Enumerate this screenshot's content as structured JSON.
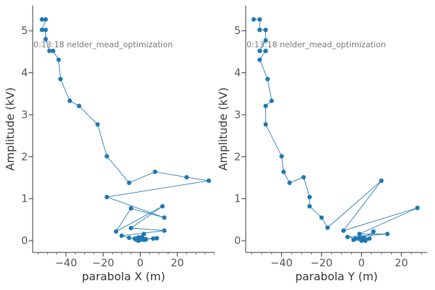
{
  "colors": {
    "series": "#1f77b4"
  },
  "chart_data": [
    {
      "type": "line",
      "annotation": "0:13:18 nelder_mead_optimization",
      "xlabel": "parabola X (m)",
      "ylabel": "Amplitude (kV)",
      "xlim": [
        -58,
        40
      ],
      "ylim": [
        -0.28,
        5.6
      ],
      "xticks": [
        -40,
        -20,
        0,
        20
      ],
      "xticklabels": [
        "−40",
        "−20",
        "0",
        "20"
      ],
      "yticks": [
        0,
        1,
        2,
        3,
        4,
        5
      ],
      "yticklabels": [
        "0",
        "1",
        "2",
        "3",
        "4",
        "5"
      ],
      "grid": false,
      "markers": true,
      "x": [
        -53,
        -51,
        -53,
        -51,
        -51,
        -49,
        -47,
        -44,
        -43,
        -38,
        -33,
        -23,
        -18,
        -6,
        8,
        25,
        37,
        -18,
        13,
        -5,
        -13,
        12,
        -5,
        13,
        -10,
        -6,
        -3,
        0,
        3,
        7,
        -2,
        2,
        1,
        -1,
        0,
        2,
        -1,
        3,
        9
      ],
      "y": [
        5.27,
        5.27,
        5.02,
        5.02,
        4.8,
        4.52,
        4.52,
        4.31,
        3.85,
        3.33,
        3.21,
        2.77,
        2.01,
        1.38,
        1.64,
        1.51,
        1.43,
        1.04,
        0.55,
        0.77,
        0.22,
        0.82,
        0.3,
        0.24,
        0.12,
        0.07,
        0.05,
        0.02,
        0.03,
        0.05,
        0.02,
        0.16,
        0.09,
        0.0,
        0.05,
        0.02,
        0.08,
        0.04,
        0.06
      ]
    },
    {
      "type": "line",
      "annotation": "0:13:18 nelder_mead_optimization",
      "xlabel": "parabola Y (m)",
      "ylabel": "Amplitude (kV)",
      "xlim": [
        -58,
        33
      ],
      "ylim": [
        -0.28,
        5.6
      ],
      "xticks": [
        -40,
        -20,
        0,
        20
      ],
      "xticklabels": [
        "−40",
        "−20",
        "0",
        "20"
      ],
      "yticks": [
        0,
        1,
        2,
        3,
        4,
        5
      ],
      "yticklabels": [
        "0",
        "1",
        "2",
        "3",
        "4",
        "5"
      ],
      "grid": false,
      "markers": true,
      "x": [
        -54,
        -51,
        -51,
        -48,
        -48,
        -51,
        -48,
        -51,
        -47,
        -45,
        -48,
        -48,
        -40,
        -39,
        -36,
        -29,
        -26,
        -26,
        -20,
        -17,
        10,
        -9,
        28,
        -1,
        13,
        -7,
        -3,
        -1,
        -4,
        0,
        2,
        1,
        4,
        6,
        0,
        -1,
        2
      ],
      "y": [
        5.27,
        5.27,
        5.02,
        5.02,
        4.77,
        4.52,
        4.52,
        4.31,
        3.85,
        3.33,
        3.21,
        2.77,
        2.01,
        1.64,
        1.38,
        1.51,
        1.04,
        0.82,
        0.55,
        0.31,
        1.43,
        0.24,
        0.78,
        0.16,
        0.16,
        0.09,
        0.05,
        0.06,
        0.02,
        0.0,
        0.03,
        0.08,
        0.05,
        0.22,
        0.02,
        0.06,
        0.0
      ]
    }
  ]
}
